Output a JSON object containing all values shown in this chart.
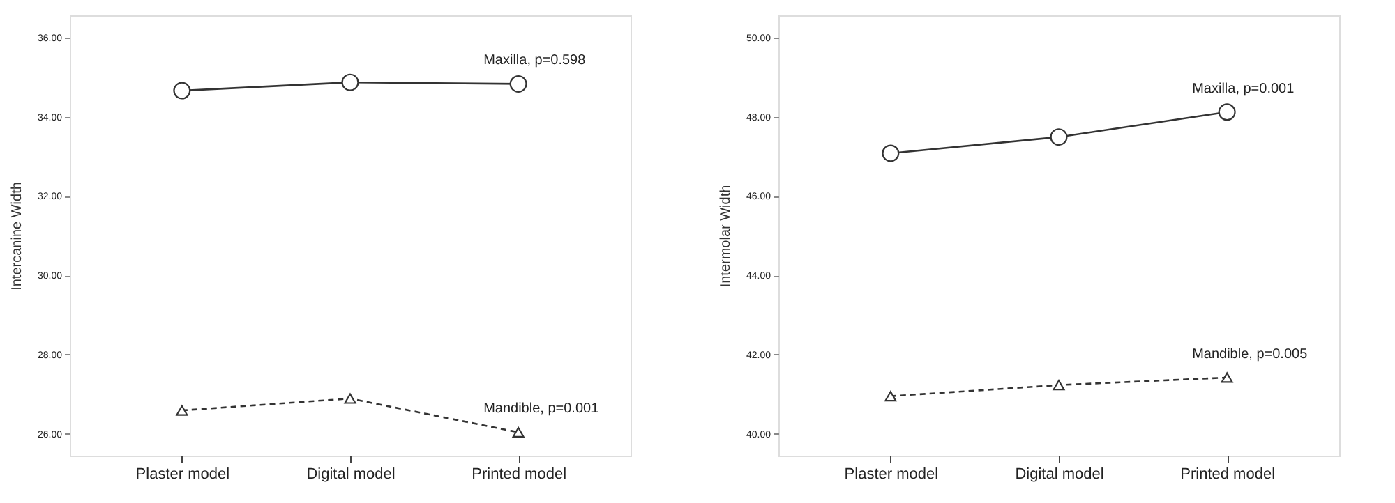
{
  "chart_data": [
    {
      "type": "line",
      "ylabel": "Intercanine Width",
      "categories": [
        "Plaster model",
        "Digital model",
        "Printed model"
      ],
      "ylim": [
        25.45,
        36.56
      ],
      "yticks": [
        {
          "value": 26,
          "label": "26.00"
        },
        {
          "value": 28,
          "label": "28.00"
        },
        {
          "value": 30,
          "label": "30.00"
        },
        {
          "value": 32,
          "label": "32.00"
        },
        {
          "value": 34,
          "label": "34.00"
        },
        {
          "value": 36,
          "label": "36.00"
        }
      ],
      "grid": false,
      "series": [
        {
          "name": "Maxilla, p=0.598",
          "color": "#333333",
          "marker": "circle",
          "line_style": "solid",
          "values": [
            34.66,
            34.87,
            34.83
          ]
        },
        {
          "name": "Mandible, p=0.001",
          "color": "#333333",
          "marker": "triangle",
          "line_style": "dashed",
          "values": [
            26.59,
            26.89,
            26.04
          ]
        }
      ]
    },
    {
      "type": "line",
      "ylabel": "Intermolar Width",
      "categories": [
        "Plaster model",
        "Digital model",
        "Printed model"
      ],
      "ylim": [
        39.45,
        50.56
      ],
      "yticks": [
        {
          "value": 40,
          "label": "40.00"
        },
        {
          "value": 42,
          "label": "42.00"
        },
        {
          "value": 44,
          "label": "44.00"
        },
        {
          "value": 46,
          "label": "46.00"
        },
        {
          "value": 48,
          "label": "48.00"
        },
        {
          "value": 50,
          "label": "50.00"
        }
      ],
      "grid": false,
      "series": [
        {
          "name": "Maxilla, p=0.001",
          "color": "#333333",
          "marker": "circle",
          "line_style": "solid",
          "values": [
            47.08,
            47.49,
            48.12
          ]
        },
        {
          "name": "Mandible, p=0.005",
          "color": "#333333",
          "marker": "triangle",
          "line_style": "dashed",
          "values": [
            40.95,
            41.23,
            41.42
          ]
        }
      ]
    }
  ]
}
